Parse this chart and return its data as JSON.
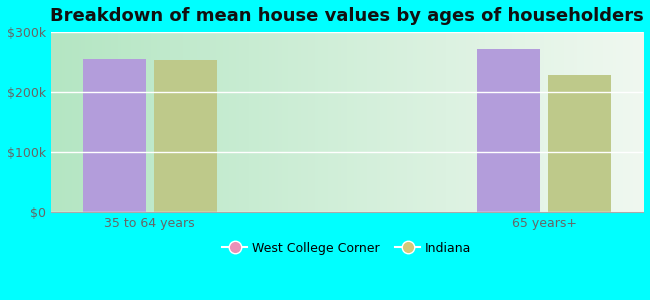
{
  "title": "Breakdown of mean house values by ages of householders",
  "categories": [
    "35 to 64 years",
    "65 years+"
  ],
  "series": {
    "West College Corner": [
      255000,
      272000
    ],
    "Indiana": [
      253000,
      228000
    ]
  },
  "bar_colors": {
    "West College Corner": "#b39ddb",
    "Indiana": "#bec98a"
  },
  "legend_dot_colors": {
    "West College Corner": "#e991b8",
    "Indiana": "#d4c97a"
  },
  "ylim": [
    0,
    300000
  ],
  "yticks": [
    0,
    100000,
    200000,
    300000
  ],
  "ytick_labels": [
    "$0",
    "$100k",
    "$200k",
    "$300k"
  ],
  "background_color": "#00ffff",
  "bar_width": 0.32,
  "x_positions": [
    0.5,
    2.5
  ],
  "title_fontsize": 13,
  "tick_fontsize": 9,
  "legend_fontsize": 9
}
